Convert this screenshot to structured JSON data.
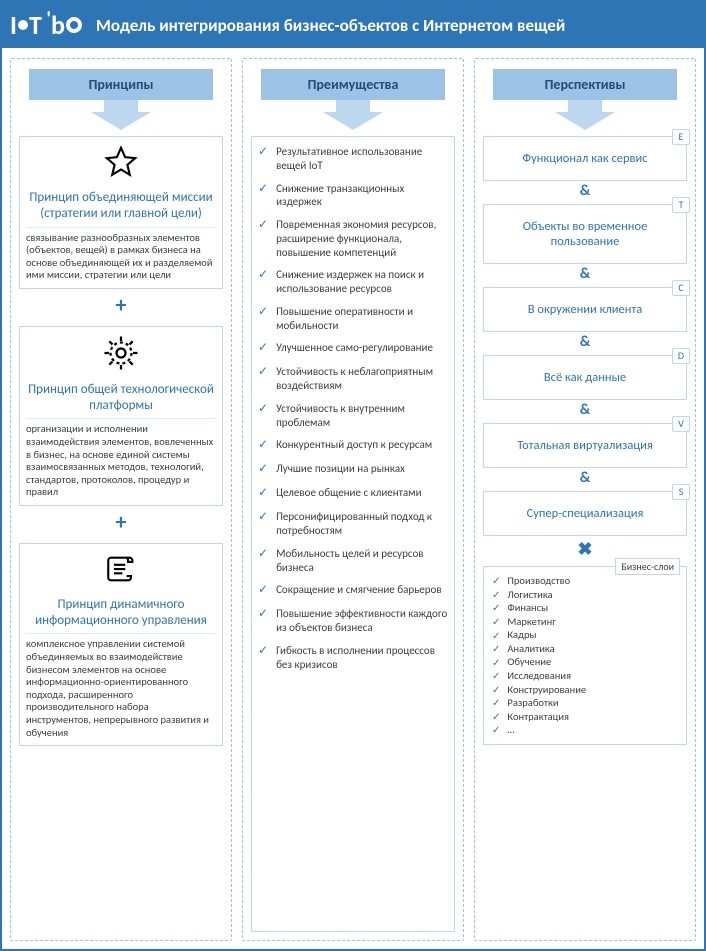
{
  "colors": {
    "primary": "#2e75b6",
    "light": "#9cc2e5",
    "lighter": "#bdd7ee",
    "lightest": "#deebf7",
    "text": "#404040",
    "darknavy": "#1f4e79",
    "white": "#ffffff"
  },
  "header": {
    "logo_text_1": "I",
    "logo_text_2": "T",
    "logo_text_3": "b",
    "title": "Модель интегрирования бизнес-объектов с Интернетом вещей"
  },
  "columns": {
    "principles": {
      "header": "Принципы",
      "items": [
        {
          "icon": "star",
          "title": "Принцип объединяющей миссии (стратегии или главной цели)",
          "desc": "связывание разнообразных элементов (объектов, вещей) в рамках бизнеса на основе объединяющей их и разделяемой ими миссии, стратегии или цели"
        },
        {
          "icon": "gear",
          "title": "Принцип общей технологической платформы",
          "desc": "организации и исполнении взаимодействия элементов, вовлеченных в бизнес, на основе единой системы взаимосвязанных методов, технологий, стандартов, протоколов, процедур и правил"
        },
        {
          "icon": "scroll",
          "title": "Принцип динамичного информационного управления",
          "desc": "комплексное управлении системой объединяемых во взаимодействие бизнесом элементов на основе информационно-ориентированного подхода, расширенного производительного набора инструментов, непрерывного развития и обучения"
        }
      ],
      "plus": "+"
    },
    "advantages": {
      "header": "Преимущества",
      "items": [
        "Результативное использование вещей IoT",
        "Снижение транзакционных издержек",
        "Повременная экономия ресурсов, расширение функционала, повышение компетенций",
        "Снижение издержек на поиск и использование ресурсов",
        "Повышение оперативности и мобильности",
        "Улучшенное само-регулирование",
        "Устойчивость к неблагоприятным воздействиям",
        "Устойчивость к внутренним проблемам",
        "Конкурентный доступ к ресурсам",
        "Лучшие позиции на рынках",
        "Целевое общение с клиентами",
        "Персонифицированный подход к потребностям",
        "Мобильность целей и ресурсов бизнеса",
        "Сокращение и смягчение барьеров",
        "Повышение эффективности каждого из объектов бизнеса",
        "Гибкость в исполнении процессов без кризисов"
      ]
    },
    "perspectives": {
      "header": "Перспективы",
      "amp": "&",
      "x": "✖",
      "items": [
        {
          "badge": "E",
          "label": "Функционал как сервис"
        },
        {
          "badge": "T",
          "label": "Объекты во временное пользование"
        },
        {
          "badge": "C",
          "label": "В окружении клиента"
        },
        {
          "badge": "D",
          "label": "Всё как данные"
        },
        {
          "badge": "V",
          "label": "Тотальная виртуализация"
        },
        {
          "badge": "S",
          "label": "Супер-специализация"
        }
      ],
      "biz_badge": "Бизнес-слои",
      "biz_items": [
        "Производство",
        "Логистика",
        "Финансы",
        "Маркетинг",
        "Кадры",
        "Аналитика",
        "Обучение",
        "Исследования",
        "Конструирование",
        "Разработки",
        "Контрактация",
        "…"
      ]
    }
  }
}
